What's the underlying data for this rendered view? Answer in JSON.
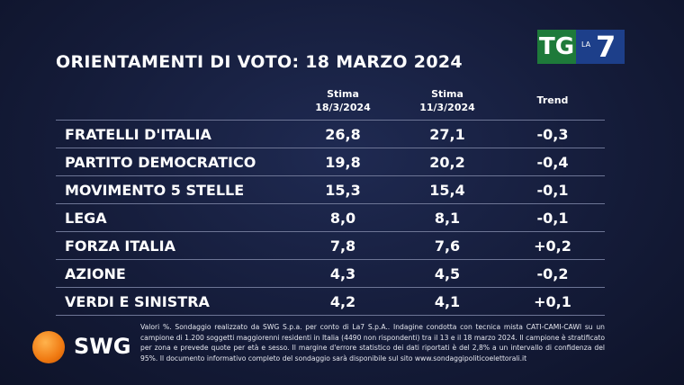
{
  "header": {
    "title": "ORIENTAMENTI DI VOTO: 18 MARZO 2024"
  },
  "logo": {
    "tg": "TG",
    "la": "LA",
    "seven": "7"
  },
  "table": {
    "columns": [
      {
        "label": "Stima",
        "date": "18/3/2024"
      },
      {
        "label": "Stima",
        "date": "11/3/2024"
      },
      {
        "label": "Trend"
      }
    ],
    "rows": [
      [
        "FRATELLI D'ITALIA",
        "26,8",
        "27,1",
        "-0,3"
      ],
      [
        "PARTITO DEMOCRATICO",
        "19,8",
        "20,2",
        "-0,4"
      ],
      [
        "MOVIMENTO 5 STELLE",
        "15,3",
        "15,4",
        "-0,1"
      ],
      [
        "LEGA",
        "8,0",
        "8,1",
        "-0,1"
      ],
      [
        "FORZA ITALIA",
        "7,8",
        "7,6",
        "+0,2"
      ],
      [
        "AZIONE",
        "4,3",
        "4,5",
        "-0,2"
      ],
      [
        "VERDI E SINISTRA",
        "4,2",
        "4,1",
        "+0,1"
      ]
    ]
  },
  "footer": {
    "brand": "SWG",
    "note": "Valori %. Sondaggio realizzato da SWG S.p.a. per conto di La7 S.p.A.. Indagine condotta con tecnica mista CATI-CAMI-CAWI su un campione di 1.200 soggetti maggiorenni residenti in Italia (4490 non rispondenti) tra il 13 e il 18 marzo 2024. Il campione è stratificato per zona e prevede quote per età e sesso. Il margine d'errore statistico dei dati riportati è del 2,8% a un intervallo di confidenza del 95%. Il documento informativo completo del sondaggio sarà disponibile sul sito www.sondaggipoliticoelettorali.it"
  }
}
